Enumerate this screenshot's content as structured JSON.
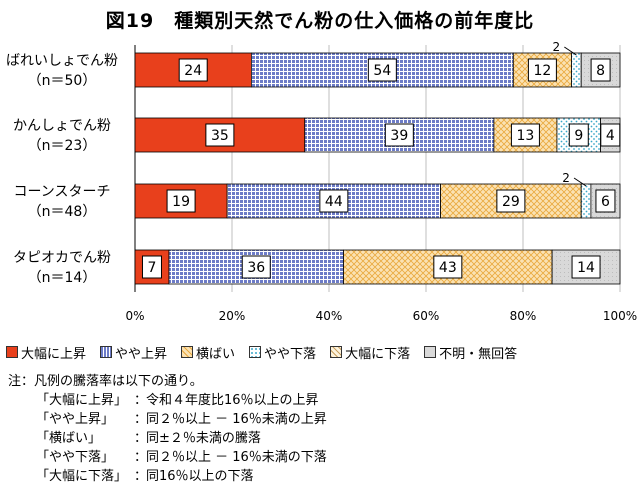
{
  "title": "図19　種類別天然でん粉の仕入価格の前年度比",
  "colors": {
    "large_rise": "#e8401c",
    "slight_rise": "#6c7bc7",
    "flat": "#f8cf86",
    "slight_fall": "#a9ddec",
    "large_fall": "#f7e7c4",
    "unknown": "#d9d9d9"
  },
  "chart_data": {
    "type": "bar",
    "orientation": "horizontal",
    "stacked": true,
    "categories": [
      [
        "ばれいしょでん粉",
        "（n＝50）"
      ],
      [
        "かんしょでん粉",
        "（n＝23）"
      ],
      [
        "コーンスターチ",
        "（n＝48）"
      ],
      [
        "タピオカでん粉",
        "（n＝14）"
      ]
    ],
    "series": [
      {
        "name": "大幅に上昇",
        "key": "large_rise",
        "values": [
          24,
          35,
          19,
          7
        ]
      },
      {
        "name": "やや上昇",
        "key": "slight_rise",
        "values": [
          54,
          39,
          44,
          36
        ]
      },
      {
        "name": "横ばい",
        "key": "flat",
        "values": [
          12,
          13,
          29,
          43
        ]
      },
      {
        "name": "やや下落",
        "key": "slight_fall",
        "values": [
          2,
          9,
          2,
          0
        ]
      },
      {
        "name": "大幅に下落",
        "key": "large_fall",
        "values": [
          0,
          0,
          0,
          0
        ]
      },
      {
        "name": "不明・無回答",
        "key": "unknown",
        "values": [
          8,
          4,
          6,
          14
        ]
      }
    ],
    "external_labels": [
      {
        "bar": 0,
        "series": 3,
        "text": "2"
      },
      {
        "bar": 2,
        "series": 3,
        "text": "2"
      }
    ],
    "xlim": [
      0,
      100
    ],
    "xticks": [
      "0%",
      "20%",
      "40%",
      "60%",
      "80%",
      "100%"
    ],
    "legend_position": "bottom"
  },
  "notes": {
    "heading": "注：凡例の騰落率は以下の通り。",
    "rows": [
      {
        "term": "「大幅に上昇」",
        "desc": "令和４年度比16％以上の上昇"
      },
      {
        "term": "「やや上昇」",
        "desc": "同２％以上 － 16％未満の上昇"
      },
      {
        "term": "「横ばい」",
        "desc": "同±２％未満の騰落"
      },
      {
        "term": "「やや下落」",
        "desc": "同２％以上 － 16％未満の下落"
      },
      {
        "term": "「大幅に下落」",
        "desc": "同16％以上の下落"
      }
    ]
  }
}
